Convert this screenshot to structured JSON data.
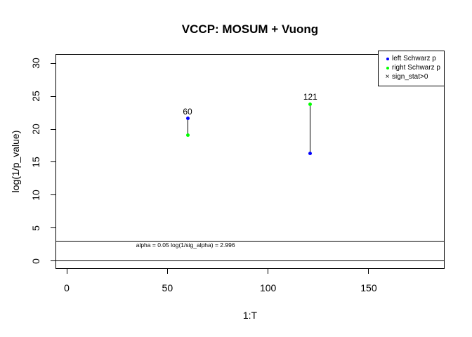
{
  "title": "VCCP: MOSUM + Vuong",
  "chart_data": {
    "type": "scatter",
    "title": "VCCP: MOSUM + Vuong",
    "xlabel": "1:T",
    "ylabel": "log(1/p_value)",
    "x_ticks": [
      0,
      50,
      100,
      150
    ],
    "y_ticks": [
      0,
      5,
      10,
      15,
      20,
      25,
      30
    ],
    "xlim": [
      -5.6,
      187.7
    ],
    "ylim": [
      -1.2,
      31.4
    ],
    "grid": false,
    "series": [
      {
        "name": "left Schwarz p",
        "color": "#0000ff",
        "marker": "dot",
        "points": [
          {
            "x": 60,
            "y": 21.6
          },
          {
            "x": 121,
            "y": 16.3
          }
        ]
      },
      {
        "name": "right Schwarz p",
        "color": "#00ff00",
        "marker": "dot",
        "points": [
          {
            "x": 60,
            "y": 19.1
          },
          {
            "x": 121,
            "y": 23.8
          }
        ]
      },
      {
        "name": "sign_stat>0",
        "color": "#000000",
        "marker": "cross",
        "points": []
      }
    ],
    "segments": [
      {
        "x": 60,
        "y_low": 19.1,
        "y_high": 21.6,
        "label": "60"
      },
      {
        "x": 121,
        "y_low": 16.3,
        "y_high": 23.8,
        "label": "121"
      }
    ],
    "hlines": [
      0,
      2.996
    ],
    "annotation": {
      "text": "alpha = 0.05 log(1/sig_alpha) = 2.996",
      "x": 59,
      "y": 2.45
    },
    "legend": {
      "position": "topright",
      "items": [
        {
          "label": "left Schwarz p",
          "marker": "dot",
          "color": "#0000ff"
        },
        {
          "label": "right Schwarz p",
          "marker": "dot",
          "color": "#00ff00"
        },
        {
          "label": "sign_stat>0",
          "marker": "cross",
          "color": "#000000"
        }
      ]
    }
  }
}
